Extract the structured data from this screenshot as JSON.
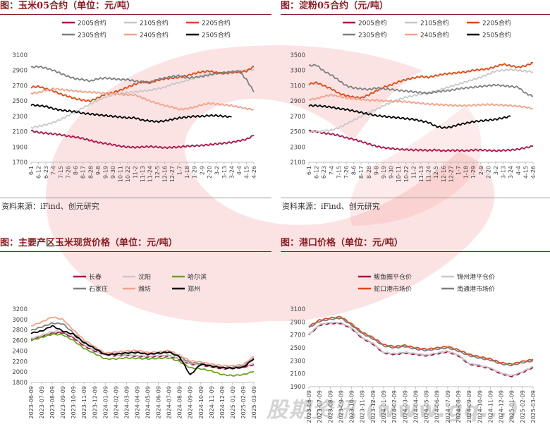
{
  "watermark": {
    "text": "股期资讯 (www.gq...)",
    "color": "#e83a3a"
  },
  "charts": [
    {
      "id": "p1",
      "title": "图：玉米05合约（单位：元/吨）",
      "source": "资料来源：iFind、创元研究",
      "chart_data": {
        "type": "line",
        "ylim": [
          1700,
          3100
        ],
        "yticks": [
          1700,
          1900,
          2100,
          2300,
          2500,
          2700,
          2900,
          3100
        ],
        "xticks": [
          "6-1",
          "6-12",
          "6-23",
          "7-4",
          "7-15",
          "7-26",
          "8-6",
          "8-17",
          "8-28",
          "9-8",
          "9-19",
          "9-30",
          "10-11",
          "10-22",
          "11-2",
          "11-13",
          "11-24",
          "12-5",
          "12-16",
          "12-27",
          "1-7",
          "1-18",
          "1-29",
          "2-9",
          "2-20",
          "3-2",
          "3-13",
          "3-24",
          "4-4",
          "4-15",
          "4-26"
        ],
        "legend": [
          [
            "2005合约",
            "2105合约",
            "2205合约"
          ],
          [
            "2305合约",
            "2405合约",
            "2505合约"
          ]
        ],
        "series": [
          {
            "name": "2005合约",
            "color": "#b0124a",
            "values": [
              2110,
              2090,
              2080,
              2070,
              2060,
              2040,
              2030,
              2010,
              1985,
              1960,
              1945,
              1930,
              1910,
              1900,
              1895,
              1900,
              1905,
              1900,
              1890,
              1895,
              1900,
              1910,
              1915,
              1920,
              1930,
              1940,
              1950,
              1960,
              1980,
              2000,
              2050
            ]
          },
          {
            "name": "2105合约",
            "color": "#c8c8c8",
            "values": [
              2150,
              2170,
              2190,
              2220,
              2260,
              2310,
              2360,
              2410,
              2460,
              2510,
              2550,
              2580,
              2600,
              2610,
              2620,
              2630,
              2640,
              2660,
              2680,
              2720,
              2740,
              2770,
              2800,
              2830,
              2850,
              2860,
              2870,
              2880,
              2890,
              2900,
              2910
            ]
          },
          {
            "name": "2205合约",
            "color": "#e2470f",
            "values": [
              2680,
              2690,
              2660,
              2630,
              2590,
              2560,
              2530,
              2510,
              2500,
              2540,
              2590,
              2610,
              2640,
              2680,
              2720,
              2750,
              2740,
              2770,
              2790,
              2800,
              2810,
              2830,
              2860,
              2880,
              2890,
              2870,
              2860,
              2870,
              2880,
              2890,
              2950
            ]
          },
          {
            "name": "2305合约",
            "color": "#7f7f7f",
            "values": [
              2940,
              2950,
              2930,
              2900,
              2860,
              2820,
              2790,
              2780,
              2760,
              2790,
              2800,
              2790,
              2780,
              2780,
              2760,
              2750,
              2740,
              2780,
              2800,
              2820,
              2830,
              2800,
              2810,
              2820,
              2840,
              2860,
              2870,
              2880,
              2890,
              2780,
              2620
            ]
          },
          {
            "name": "2405合约",
            "color": "#f4a28a",
            "values": [
              2600,
              2610,
              2640,
              2660,
              2650,
              2640,
              2630,
              2620,
              2615,
              2610,
              2600,
              2600,
              2590,
              2580,
              2580,
              2540,
              2500,
              2470,
              2440,
              2420,
              2390,
              2400,
              2420,
              2450,
              2470,
              2460,
              2450,
              2440,
              2420,
              2400,
              2390
            ]
          },
          {
            "name": "2505合约",
            "color": "#000000",
            "values": [
              2450,
              2440,
              2430,
              2400,
              2380,
              2370,
              2360,
              2340,
              2330,
              2320,
              2310,
              2300,
              2290,
              2280,
              2280,
              2250,
              2240,
              2230,
              2240,
              2260,
              2280,
              2290,
              2300,
              2300,
              2310,
              2310,
              2300,
              2290,
              null,
              null,
              null
            ]
          }
        ]
      }
    },
    {
      "id": "p2",
      "title": "图：淀粉05合约（元/吨）",
      "source": "资料来源：iFind、创元研究",
      "chart_data": {
        "type": "line",
        "ylim": [
          2100,
          3500
        ],
        "yticks": [
          2100,
          2300,
          2500,
          2700,
          2900,
          3100,
          3300,
          3500
        ],
        "xticks": [
          "6-1",
          "6-12",
          "6-23",
          "7-4",
          "7-15",
          "7-26",
          "8-6",
          "8-17",
          "8-28",
          "9-8",
          "9-19",
          "9-30",
          "10-11",
          "10-22",
          "11-2",
          "11-13",
          "11-24",
          "12-5",
          "12-16",
          "12-27",
          "1-7",
          "1-18",
          "1-29",
          "2-9",
          "2-20",
          "3-2",
          "3-13",
          "3-24",
          "4-4",
          "4-15",
          "4-26"
        ],
        "legend": [
          [
            "2005合约",
            "2105合约",
            "2205合约"
          ],
          [
            "2305合约",
            "2405合约",
            "2505合约"
          ]
        ],
        "series": [
          {
            "name": "2005合约",
            "color": "#b0124a",
            "values": [
              2510,
              2500,
              2480,
              2470,
              2450,
              2420,
              2400,
              2370,
              2340,
              2310,
              2290,
              2280,
              2270,
              2265,
              2260,
              2260,
              2255,
              2260,
              2250,
              2255,
              2255,
              2250,
              2260,
              2260,
              2255,
              2250,
              2255,
              2260,
              2270,
              2290,
              2310
            ]
          },
          {
            "name": "2105合约",
            "color": "#c8c8c8",
            "values": [
              2500,
              2500,
              2510,
              2520,
              2550,
              2600,
              2650,
              2700,
              2750,
              2790,
              2840,
              2880,
              2920,
              2950,
              2970,
              2990,
              3010,
              3030,
              3060,
              3090,
              3120,
              3150,
              3180,
              3210,
              3250,
              3290,
              3300,
              3310,
              3300,
              3290,
              3280
            ]
          },
          {
            "name": "2205合约",
            "color": "#e2470f",
            "values": [
              3120,
              3140,
              3100,
              3060,
              3000,
              2970,
              2950,
              2940,
              2980,
              3030,
              3080,
              3110,
              3150,
              3180,
              3200,
              3220,
              3210,
              3230,
              3250,
              3260,
              3270,
              3280,
              3300,
              3310,
              3320,
              3350,
              3380,
              3360,
              3340,
              3360,
              3400
            ]
          },
          {
            "name": "2305合约",
            "color": "#7f7f7f",
            "values": [
              3360,
              3370,
              3290,
              3240,
              3170,
              3100,
              3070,
              3060,
              3050,
              3070,
              3060,
              3050,
              3040,
              3030,
              3020,
              3010,
              3000,
              3020,
              3030,
              3040,
              3060,
              3070,
              3080,
              3090,
              3100,
              3110,
              3100,
              3090,
              3080,
              3000,
              2960
            ]
          },
          {
            "name": "2405合约",
            "color": "#f4a28a",
            "values": [
              2920,
              2930,
              2960,
              2980,
              2960,
              2940,
              2930,
              2920,
              2910,
              2910,
              2900,
              2900,
              2895,
              2890,
              2880,
              2870,
              2860,
              2855,
              2850,
              2845,
              2840,
              2840,
              2845,
              2850,
              2855,
              2850,
              2845,
              2840,
              2830,
              2820,
              2800
            ]
          },
          {
            "name": "2505合约",
            "color": "#000000",
            "values": [
              2840,
              2840,
              2830,
              2820,
              2800,
              2790,
              2770,
              2750,
              2730,
              2710,
              2700,
              2690,
              2680,
              2670,
              2660,
              2640,
              2620,
              2570,
              2550,
              2560,
              2590,
              2610,
              2630,
              2640,
              2650,
              2660,
              2680,
              2700,
              null,
              null,
              null
            ]
          }
        ]
      }
    },
    {
      "id": "p3",
      "title": "图：主要产区玉米现货价格（单位：元/吨）",
      "source": "",
      "chart_data": {
        "type": "line",
        "ylim": [
          1800,
          3200
        ],
        "yticks": [
          1800,
          2000,
          2200,
          2400,
          2600,
          2800,
          3000,
          3200
        ],
        "xticks": [
          "2023-06-09",
          "2023-07-09",
          "2023-08-09",
          "2023-09-09",
          "2023-10-09",
          "2023-11-09",
          "2023-12-09",
          "2024-01-09",
          "2024-02-09",
          "2024-03-09",
          "2024-04-09",
          "2024-05-09",
          "2024-06-09",
          "2024-07-09",
          "2024-08-09",
          "2024-09-09",
          "2024-10-09",
          "2024-11-09",
          "2024-12-09",
          "2025-01-09",
          "2025-02-09",
          "2025-03-09"
        ],
        "legend": [
          [
            "长春",
            "沈阳",
            "哈尔滨"
          ],
          [
            "石家庄",
            "潍坊",
            "郑州"
          ]
        ],
        "series": [
          {
            "name": "长春",
            "color": "#b0124a",
            "values": [
              2620,
              2680,
              2740,
              2750,
              2650,
              2500,
              2400,
              2330,
              2310,
              2320,
              2300,
              2290,
              2300,
              2310,
              2240,
              2150,
              2130,
              2100,
              2060,
              2070,
              2090,
              2140
            ]
          },
          {
            "name": "沈阳",
            "color": "#c8c8c8",
            "values": [
              2640,
              2700,
              2770,
              2780,
              2680,
              2520,
              2420,
              2340,
              2320,
              2330,
              2310,
              2300,
              2310,
              2320,
              2250,
              2160,
              2140,
              2110,
              2070,
              2080,
              2110,
              2160
            ]
          },
          {
            "name": "哈尔滨",
            "color": "#6aa526",
            "values": [
              2600,
              2660,
              2720,
              2710,
              2600,
              2450,
              2350,
              2250,
              2250,
              2270,
              2260,
              2250,
              2260,
              2270,
              2200,
              2080,
              2060,
              2020,
              1950,
              1930,
              1950,
              2010
            ]
          },
          {
            "name": "石家庄",
            "color": "#7f7f7f",
            "values": [
              2790,
              2860,
              2930,
              2920,
              2740,
              2560,
              2450,
              2330,
              2350,
              2370,
              2380,
              2340,
              2350,
              2380,
              2290,
              2180,
              2160,
              2120,
              2090,
              2090,
              2110,
              2270
            ]
          },
          {
            "name": "潍坊",
            "color": "#f4a28a",
            "values": [
              2880,
              2950,
              3050,
              3000,
              2800,
              2610,
              2480,
              2360,
              2380,
              2400,
              2410,
              2370,
              2380,
              2410,
              2320,
              2210,
              2190,
              2150,
              2120,
              2120,
              2140,
              2300
            ]
          },
          {
            "name": "郑州",
            "color": "#000000",
            "values": [
              2740,
              2780,
              2880,
              2780,
              2720,
              2560,
              2450,
              2330,
              2340,
              2360,
              2370,
              2340,
              2360,
              2380,
              2290,
              1940,
              2150,
              2110,
              2080,
              2070,
              2090,
              2250
            ]
          }
        ]
      }
    },
    {
      "id": "p4",
      "title": "图：港口价格（单位：元/吨）",
      "source": "",
      "chart_data": {
        "type": "line",
        "ylim": [
          1900,
          3100
        ],
        "yticks": [
          1900,
          2100,
          2300,
          2500,
          2700,
          2900,
          3100
        ],
        "xticks": [
          "2023-06-09",
          "2023-07-09",
          "2023-08-09",
          "2023-09-09",
          "2023-10-09",
          "2023-11-09",
          "2023-12-09",
          "2024-01-09",
          "2024-02-09",
          "2024-03-09",
          "2024-04-09",
          "2024-05-09",
          "2024-06-09",
          "2024-07-09",
          "2024-08-09",
          "2024-09-09",
          "2024-10-09",
          "2024-11-09",
          "2024-12-09",
          "2025-01-09",
          "2025-02-09",
          "2025-03-09"
        ],
        "legend": [
          [
            "鲅鱼圈平仓价",
            "锦州港平仓价"
          ],
          [
            "蛇口港市场价",
            "南通港市场价"
          ]
        ],
        "series": [
          {
            "name": "鲅鱼圈平仓价",
            "color": "#b0124a",
            "values": [
              2700,
              2850,
              2880,
              2880,
              2800,
              2650,
              2560,
              2420,
              2400,
              2420,
              2400,
              2380,
              2410,
              2440,
              2380,
              2250,
              2220,
              2180,
              2100,
              2060,
              2120,
              2200
            ]
          },
          {
            "name": "锦州港平仓价",
            "color": "#c8c8c8",
            "values": [
              2710,
              2860,
              2890,
              2890,
              2810,
              2660,
              2570,
              2430,
              2410,
              2430,
              2410,
              2390,
              2420,
              2450,
              2390,
              2260,
              2230,
              2190,
              2110,
              2070,
              2130,
              2210
            ]
          },
          {
            "name": "蛇口港市场价",
            "color": "#e2470f",
            "values": [
              2830,
              2930,
              2960,
              2980,
              2870,
              2740,
              2660,
              2550,
              2520,
              2540,
              2500,
              2480,
              2500,
              2520,
              2470,
              2400,
              2360,
              2330,
              2270,
              2250,
              2290,
              2320
            ]
          },
          {
            "name": "南通港市场价",
            "color": "#7f7f7f",
            "values": [
              2810,
              2910,
              2940,
              2960,
              2850,
              2720,
              2640,
              2530,
              2500,
              2520,
              2480,
              2460,
              2480,
              2500,
              2450,
              2380,
              2340,
              2310,
              2250,
              2230,
              2270,
              2300
            ]
          }
        ]
      }
    }
  ]
}
